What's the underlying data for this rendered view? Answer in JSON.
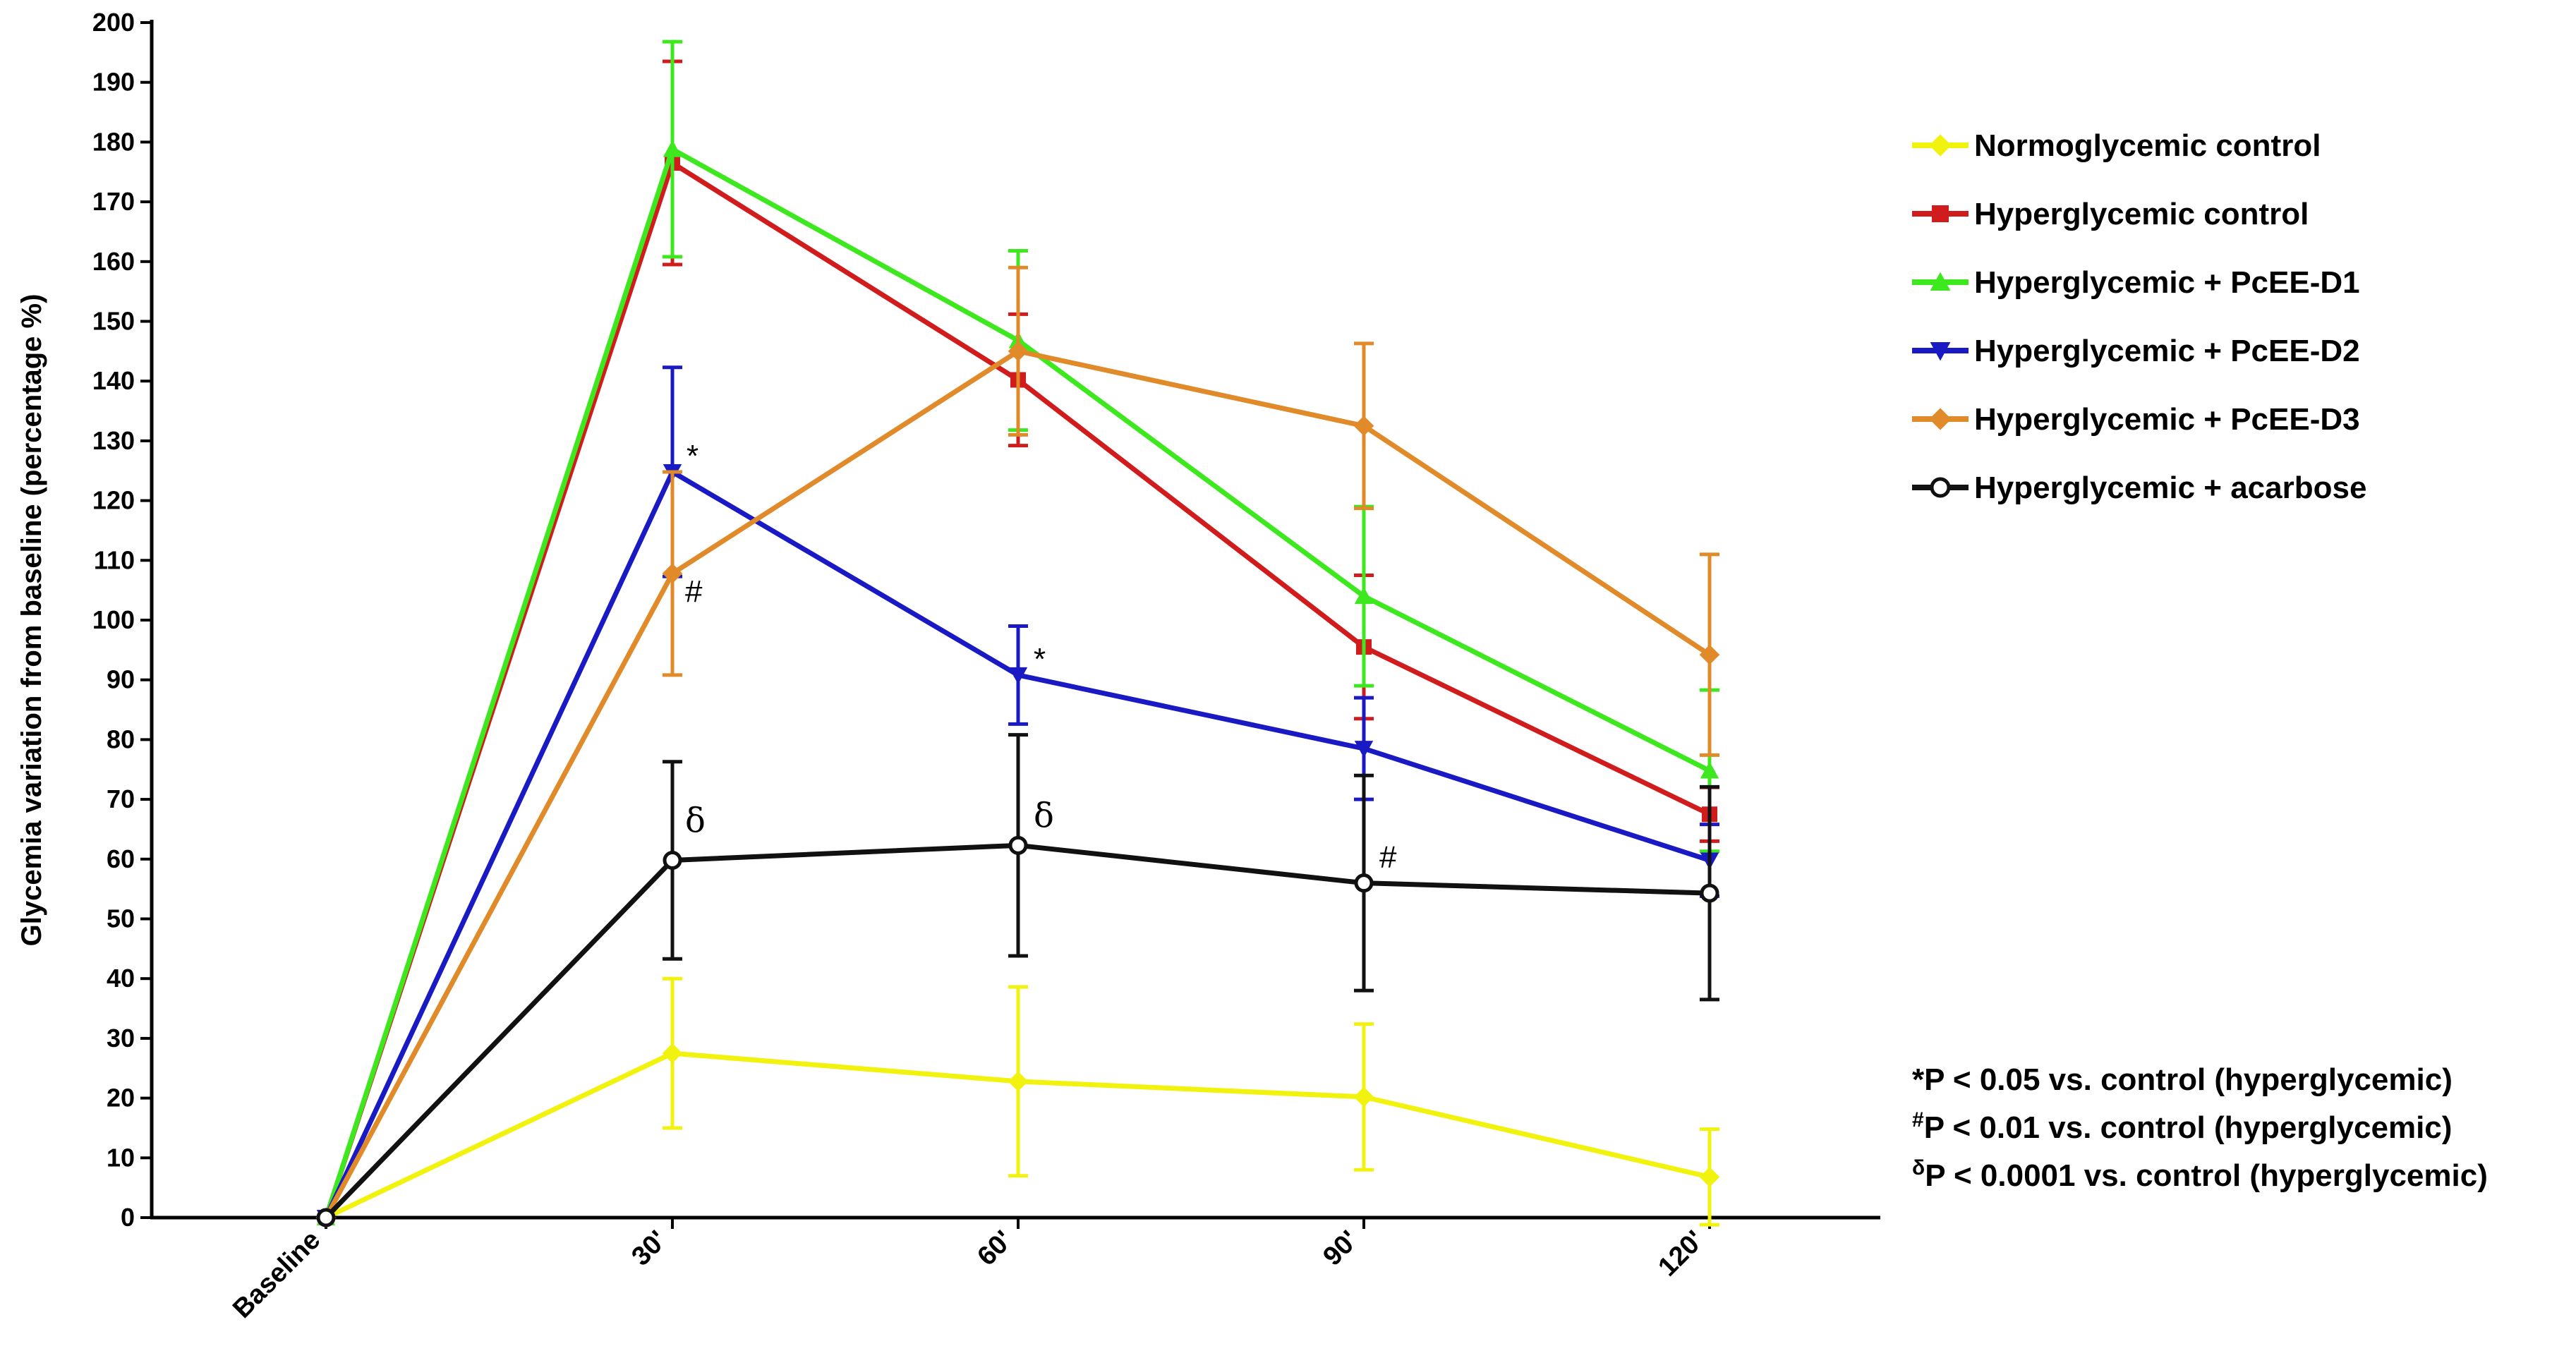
{
  "chart_data": {
    "type": "line",
    "title": "",
    "xlabel": "",
    "ylabel": "Glycemia variation from baseline (percentage %)",
    "ylim": [
      0,
      200
    ],
    "ytick_step": 10,
    "categories": [
      "Baseline",
      "30'",
      "60'",
      "90'",
      "120'"
    ],
    "series": [
      {
        "name": "Normoglycemic control",
        "color": "#f2f20f",
        "marker": "diamond",
        "values": [
          0,
          27.5,
          22.8,
          20.2,
          6.8
        ],
        "errors": [
          0,
          12.5,
          15.8,
          12.2,
          8.0
        ]
      },
      {
        "name": "Hyperglycemic control",
        "color": "#d01c1c",
        "marker": "square",
        "values": [
          0,
          176.5,
          140.2,
          95.5,
          67.5
        ],
        "errors": [
          0,
          17.0,
          11.0,
          12.0,
          4.5
        ]
      },
      {
        "name": "Hyperglycemic + PcEE-D1",
        "color": "#3ee81e",
        "marker": "triangle-up",
        "values": [
          0,
          178.8,
          146.8,
          104.0,
          74.8
        ],
        "errors": [
          0,
          18.0,
          15.0,
          15.0,
          13.5
        ]
      },
      {
        "name": "Hyperglycemic + PcEE-D2",
        "color": "#1a1ac4",
        "marker": "triangle-down",
        "values": [
          0,
          124.8,
          90.8,
          78.5,
          59.8
        ],
        "errors": [
          0,
          17.5,
          8.2,
          8.5,
          6.0
        ]
      },
      {
        "name": "Hyperglycemic + PcEE-D3",
        "color": "#e08a2a",
        "marker": "diamond",
        "values": [
          0,
          107.8,
          145.0,
          132.5,
          94.2
        ],
        "errors": [
          0,
          17.0,
          14.0,
          13.8,
          16.8
        ]
      },
      {
        "name": "Hyperglycemic + acarbose",
        "color": "#111111",
        "marker": "circle-open",
        "values": [
          0,
          59.8,
          62.3,
          56.0,
          54.3
        ],
        "errors": [
          0,
          16.5,
          18.5,
          18.0,
          17.8
        ]
      }
    ],
    "annotations": [
      {
        "text": "*",
        "series": "Hyperglycemic + PcEE-D2",
        "category": "30'"
      },
      {
        "text": "#",
        "series": "Hyperglycemic + PcEE-D3",
        "category": "30'"
      },
      {
        "text": "*",
        "series": "Hyperglycemic + PcEE-D2",
        "category": "60'"
      },
      {
        "text": "δ",
        "series": "Hyperglycemic + acarbose",
        "category": "30'"
      },
      {
        "text": "δ",
        "series": "Hyperglycemic + acarbose",
        "category": "60'"
      },
      {
        "text": "#",
        "series": "Hyperglycemic + acarbose",
        "category": "90'"
      }
    ],
    "significance_notes": [
      {
        "symbol": "*",
        "text": "P < 0.05 vs. control (hyperglycemic)"
      },
      {
        "symbol": "#",
        "text": "P < 0.01 vs. control (hyperglycemic)"
      },
      {
        "symbol": "δ",
        "text": "P < 0.0001 vs. control (hyperglycemic)"
      }
    ]
  }
}
